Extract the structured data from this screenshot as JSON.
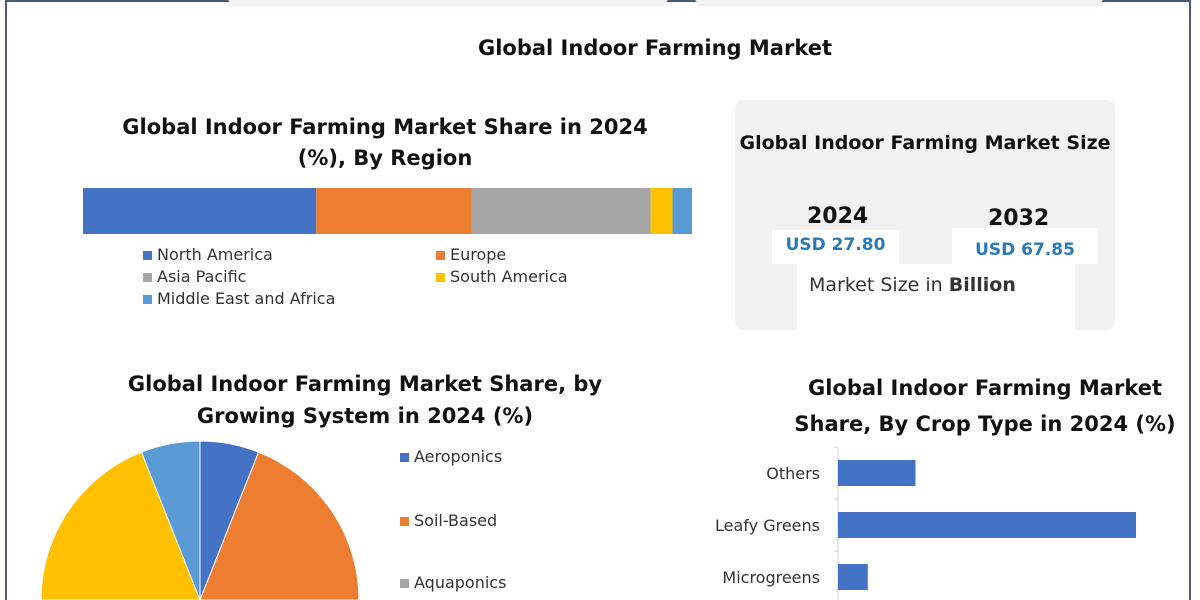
{
  "header": {
    "title": "Global Indoor Farming Market"
  },
  "colors": {
    "blue": "#4472c4",
    "orange": "#ed7d31",
    "gray": "#a5a5a5",
    "yellow": "#ffc000",
    "lightblue": "#5b9bd5",
    "value_text": "#2a7ab8",
    "frame": "#4a5a78"
  },
  "market_size": {
    "title": "Global Indoor Farming Market Size",
    "year_start": "2024",
    "value_start": "USD 27.80",
    "year_end": "2032",
    "value_end": "USD 67.85",
    "unit_prefix": "Market Size in ",
    "unit_bold": "Billion"
  },
  "chart_data": [
    {
      "type": "bar",
      "orientation": "horizontal-stacked-100",
      "title_line1": "Global Indoor Farming Market Share in 2024",
      "title_line2": "(%), By Region",
      "legend_placement": "bottom",
      "grid": false,
      "series": [
        {
          "name": "North America",
          "value": 38.3,
          "color": "#4472c4"
        },
        {
          "name": "Europe",
          "value": 25.5,
          "color": "#ed7d31"
        },
        {
          "name": "Asia Pacific",
          "value": 29.4,
          "color": "#a5a5a5"
        },
        {
          "name": "South America",
          "value": 3.6,
          "color": "#ffc000"
        },
        {
          "name": "Middle East and Africa",
          "value": 3.2,
          "color": "#5b9bd5"
        }
      ]
    },
    {
      "type": "pie",
      "title_line1": "Global Indoor Farming Market Share, by",
      "title_line2": "Growing System in 2024 (%)",
      "legend_placement": "right",
      "slices": [
        {
          "name": "Aeroponics",
          "value": 6,
          "color": "#4472c4"
        },
        {
          "name": "Soil-Based",
          "value": 44,
          "color": "#ed7d31"
        },
        {
          "name": "Aquaponics",
          "value": 6,
          "color": "#a5a5a5"
        },
        {
          "value": 38,
          "color": "#ffc000"
        },
        {
          "value": 6,
          "color": "#5b9bd5"
        }
      ]
    },
    {
      "type": "bar",
      "orientation": "horizontal",
      "title_line1": "Global Indoor Farming Market",
      "title_line2": "Share, By Crop Type in 2024 (%)",
      "grid": false,
      "color": "#4472c4",
      "categories": [
        "Others",
        "Leafy Greens",
        "Microgreens"
      ],
      "values": [
        13,
        50,
        5
      ],
      "xlim": [
        0,
        55
      ]
    }
  ]
}
